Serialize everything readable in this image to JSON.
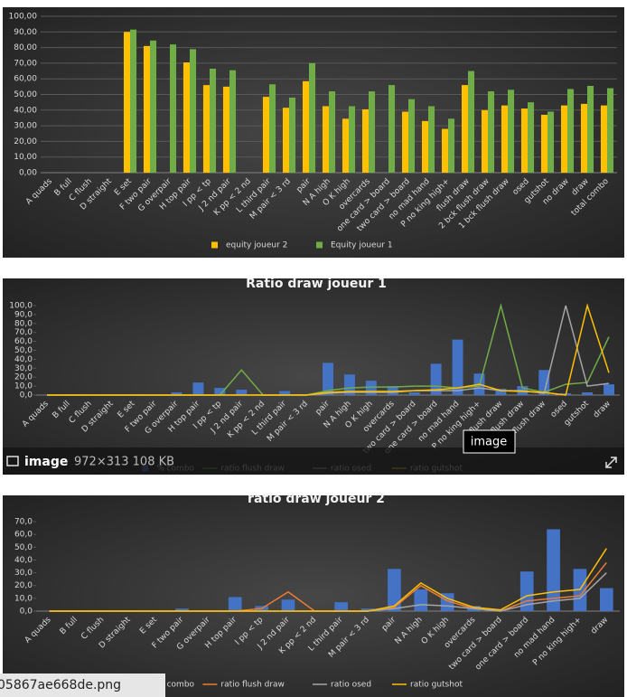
{
  "chart_data": [
    {
      "type": "bar",
      "categories": [
        "A quads",
        "B full",
        "C flush",
        "D straight",
        "E set",
        "F two pair",
        "G overpair",
        "H top pair",
        "I pp < tp",
        "J 2 nd pair",
        "K pp < 2 nd",
        "L third pair",
        "M pair < 3 rd",
        "pair",
        "N A high",
        "O K high",
        "overcards",
        "one card > board",
        "two card > board",
        "no mad hand",
        "P no king high+",
        "flush draw",
        "2 bck flush draw",
        "1 bck flush draw",
        "osed",
        "gutshot",
        "no draw",
        "draw",
        "total combo"
      ],
      "series": [
        {
          "name": "equity joueur 2",
          "type": "bar",
          "color": "#ffc000",
          "values": [
            null,
            null,
            null,
            null,
            90,
            81,
            null,
            70.5,
            56,
            55,
            null,
            48.5,
            41.5,
            58.5,
            42.5,
            34.5,
            40.5,
            null,
            39,
            33,
            28,
            56,
            40,
            43,
            41,
            37,
            43,
            44,
            43
          ]
        },
        {
          "name": "Equity joueur 1",
          "type": "bar",
          "color": "#70ad47",
          "values": [
            null,
            null,
            null,
            null,
            91.5,
            84.5,
            82,
            79,
            66.5,
            65.5,
            null,
            56.5,
            48,
            70,
            52,
            42.5,
            52,
            56,
            47,
            42.5,
            34.5,
            65,
            52,
            53,
            45,
            39,
            53.5,
            55.5,
            54
          ]
        }
      ],
      "ylim": [
        0,
        100
      ],
      "yticks": [
        {
          "value": 0,
          "label": "0,00"
        },
        {
          "value": 10,
          "label": "10,00"
        },
        {
          "value": 20,
          "label": "20,00"
        },
        {
          "value": 30,
          "label": "30,00"
        },
        {
          "value": 40,
          "label": "40,00"
        },
        {
          "value": 50,
          "label": "50,00"
        },
        {
          "value": 60,
          "label": "60,00"
        },
        {
          "value": 70,
          "label": "70,00"
        },
        {
          "value": 80,
          "label": "80,00"
        },
        {
          "value": 90,
          "label": "90,00"
        },
        {
          "value": 100,
          "label": "100,00"
        }
      ],
      "grid": true,
      "legend": "bottom"
    },
    {
      "type": "combo",
      "title": "Ratio draw joueur 1",
      "categories": [
        "A quads",
        "B full",
        "C flush",
        "D straight",
        "E set",
        "F two pair",
        "G overpair",
        "H top pair",
        "I pp < tp",
        "J 2 nd pair",
        "K pp < 2 nd",
        "L third pair",
        "M pair < 3 rd",
        "pair",
        "N A high",
        "O K high",
        "overcards",
        "two card > board",
        "one card > board",
        "no mad hand",
        "P no king high+",
        "flush draw",
        "2 bck flush draw",
        "1 bck flush draw",
        "osed",
        "gutshot",
        "draw"
      ],
      "series": [
        {
          "name": "% combo",
          "type": "bar",
          "color": "#4472c4",
          "values": [
            0,
            0,
            0,
            0,
            0,
            0,
            3,
            14,
            8,
            6,
            0,
            4.5,
            0.5,
            36,
            23,
            16,
            10,
            3,
            35,
            62,
            24,
            7,
            10,
            28,
            2,
            3,
            12
          ]
        },
        {
          "name": "ratio flush draw",
          "type": "line",
          "color": "#70ad47",
          "values": [
            0,
            0,
            0,
            0,
            0,
            0,
            0,
            0,
            0,
            28,
            0,
            0,
            0,
            5,
            8,
            9,
            9,
            10,
            10,
            8,
            10,
            100,
            8,
            3,
            12,
            14,
            65
          ]
        },
        {
          "name": "ratio osed",
          "type": "line",
          "color": "#a5a5a5",
          "values": [
            0,
            0,
            0,
            0,
            0,
            0,
            0,
            0,
            0,
            0,
            0,
            0,
            0,
            2,
            3,
            3,
            3,
            5,
            5,
            5,
            8,
            5,
            5,
            2,
            100,
            10,
            13
          ]
        },
        {
          "name": "ratio gutshot",
          "type": "line",
          "color": "#ffc000",
          "values": [
            0,
            0,
            0,
            0,
            0,
            0,
            0,
            0,
            0,
            0,
            0,
            0,
            0,
            3,
            4,
            4,
            4,
            5,
            6,
            8,
            12,
            5,
            4,
            3,
            0,
            100,
            25
          ]
        }
      ],
      "ylim": [
        0,
        100
      ],
      "yticks": [
        {
          "value": 0,
          "label": "0,0"
        },
        {
          "value": 10,
          "label": "10,0"
        },
        {
          "value": 20,
          "label": "20,0"
        },
        {
          "value": 30,
          "label": "30,0"
        },
        {
          "value": 40,
          "label": "40,0"
        },
        {
          "value": 50,
          "label": "50,0"
        },
        {
          "value": 60,
          "label": "60,0"
        },
        {
          "value": 70,
          "label": "70,0"
        },
        {
          "value": 80,
          "label": "80,0"
        },
        {
          "value": 90,
          "label": "90,0"
        },
        {
          "value": 100,
          "label": "100,0"
        }
      ],
      "grid": false,
      "legend": "bottom"
    },
    {
      "type": "combo",
      "title": "ratio draw joueur 2",
      "categories": [
        "A quads",
        "B full",
        "C flush",
        "D straight",
        "E set",
        "F two pair",
        "G overpair",
        "H top pair",
        "I pp < tp",
        "J 2 nd pair",
        "K pp < 2 nd",
        "L third pair",
        "M pair < 3 rd",
        "pair",
        "N A high",
        "O K high",
        "overcards",
        "two card > board",
        "one card > board",
        "no mad hand",
        "P no king high+",
        "draw"
      ],
      "series": [
        {
          "name": "% combo",
          "type": "bar",
          "color": "#4472c4",
          "values": [
            0,
            0,
            0,
            0,
            0,
            2,
            0,
            11,
            4,
            9,
            0,
            7,
            2,
            33,
            17,
            14,
            4,
            0.5,
            31,
            64,
            33,
            18
          ]
        },
        {
          "name": "ratio flush draw",
          "type": "line",
          "color": "#ed7d31",
          "values": [
            0,
            0,
            0,
            0,
            0,
            0,
            0,
            0,
            2,
            15,
            0,
            0,
            0,
            3,
            20,
            8,
            2,
            0,
            8,
            10,
            12,
            38
          ]
        },
        {
          "name": "ratio osed",
          "type": "line",
          "color": "#a5a5a5",
          "values": [
            0,
            0,
            0,
            0,
            0,
            0,
            0,
            0,
            0,
            0,
            0,
            0,
            0,
            2,
            5,
            4,
            2,
            0,
            5,
            8,
            10,
            30
          ]
        },
        {
          "name": "ratio gutshot",
          "type": "line",
          "color": "#ffc000",
          "values": [
            0,
            0,
            0,
            0,
            0,
            0,
            0,
            0,
            0,
            0,
            0,
            0,
            0,
            4,
            22,
            10,
            3,
            1,
            12,
            15,
            17,
            49
          ]
        }
      ],
      "ylim": [
        0,
        70
      ],
      "yticks": [
        {
          "value": 0,
          "label": "0,0"
        },
        {
          "value": 10,
          "label": "10,0"
        },
        {
          "value": 20,
          "label": "20,0"
        },
        {
          "value": 30,
          "label": "30,0"
        },
        {
          "value": 40,
          "label": "40,0"
        },
        {
          "value": 50,
          "label": "50,0"
        },
        {
          "value": 60,
          "label": "60,0"
        },
        {
          "value": 70,
          "label": "70,0"
        }
      ],
      "grid": false,
      "legend": "bottom"
    }
  ],
  "ui": {
    "tooltip": "image",
    "caption": "image",
    "meta": "972×313 108 KB",
    "filename": "05867ae668de.png"
  }
}
